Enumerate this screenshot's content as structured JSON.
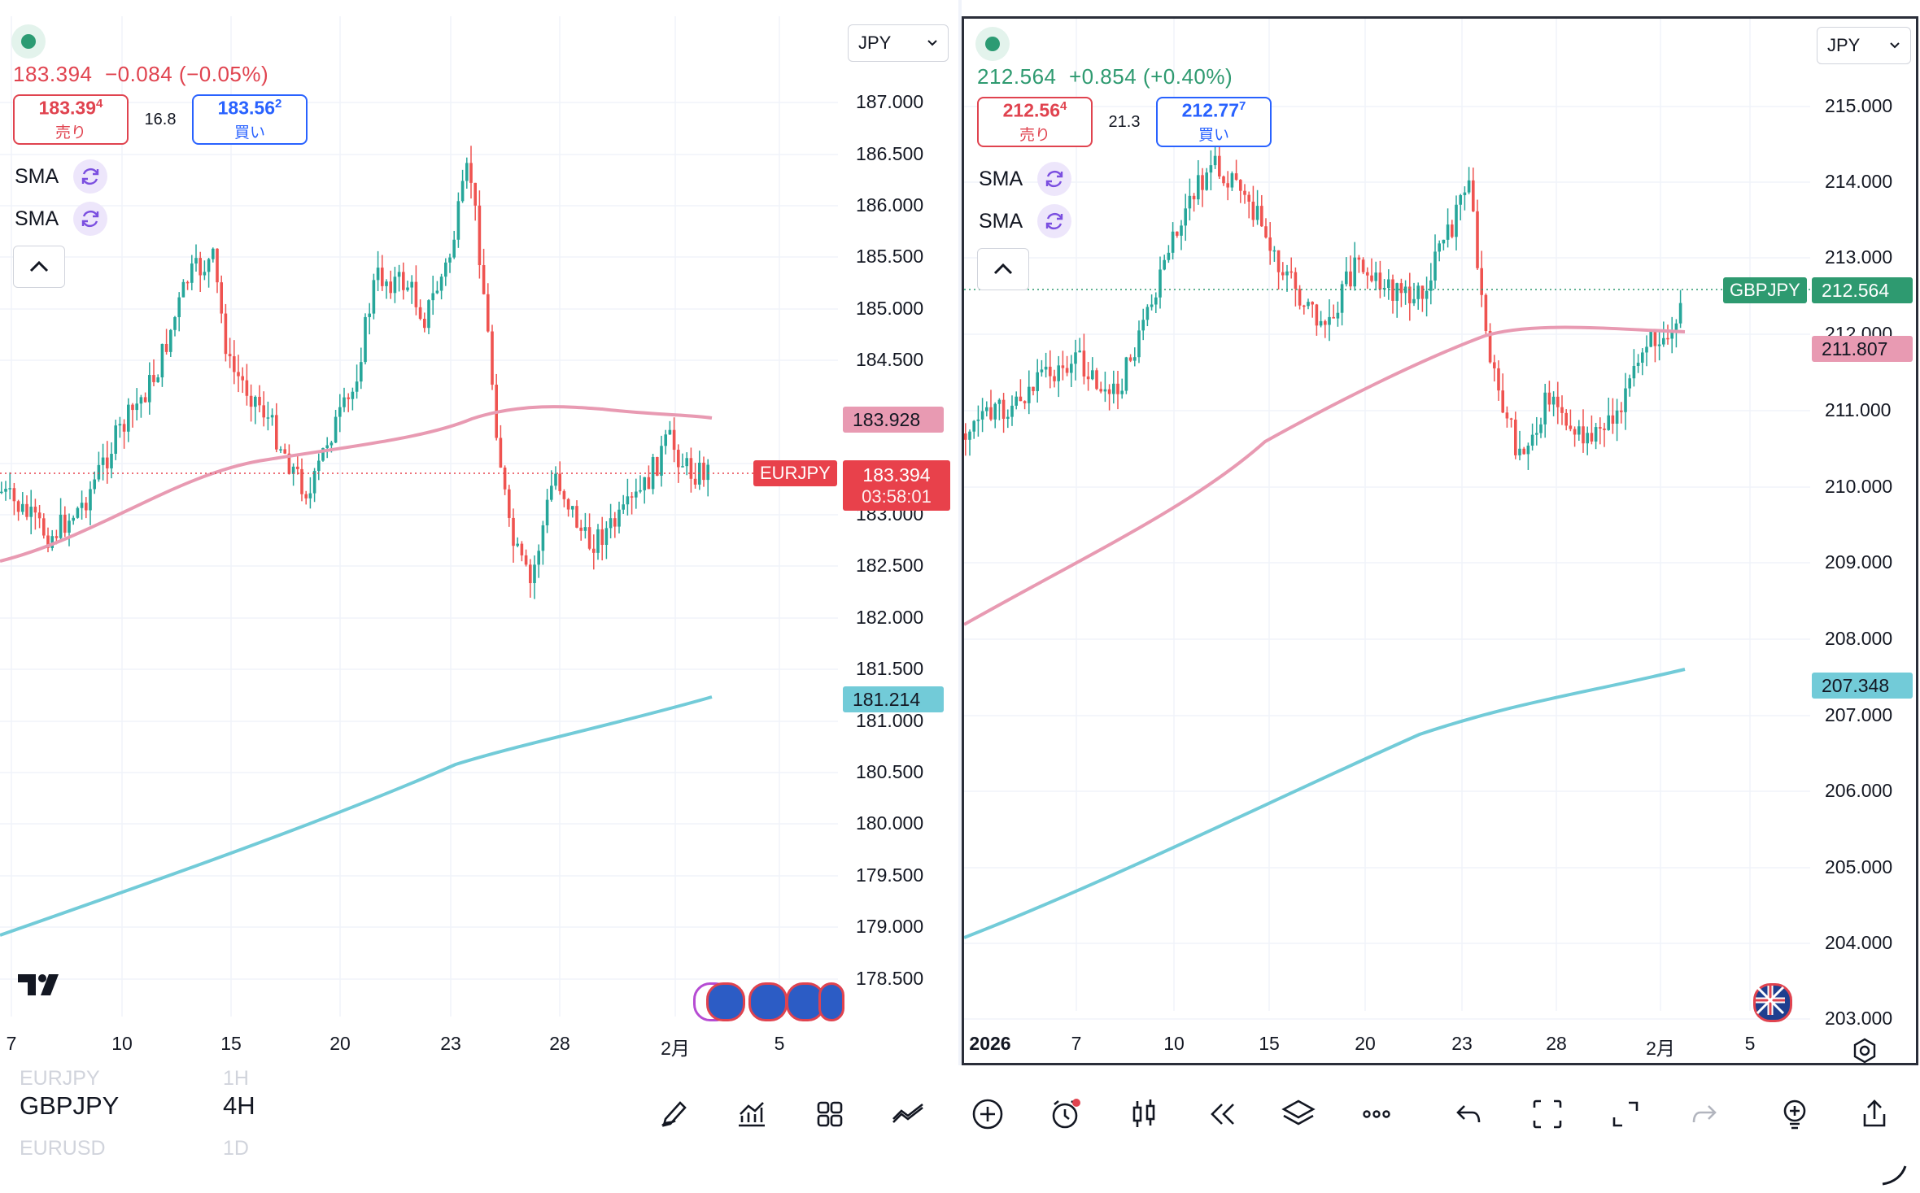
{
  "left_chart": {
    "symbol": "EURJPY",
    "currency": "JPY",
    "price_line": {
      "last": "183.394",
      "change": "−0.084",
      "change_pct": "(−0.05%)"
    },
    "sell": {
      "price_main": "183.39",
      "price_sup": "4",
      "label": "売り"
    },
    "spread": "16.8",
    "buy": {
      "price_main": "183.56",
      "price_sup": "2",
      "label": "買い"
    },
    "indicators": [
      "SMA",
      "SMA"
    ],
    "y_axis_labels": [
      "187.000",
      "186.500",
      "186.000",
      "185.500",
      "185.000",
      "184.500",
      "183.000",
      "182.500",
      "182.000",
      "181.500",
      "181.000",
      "180.500",
      "180.000",
      "179.500",
      "179.000",
      "178.500"
    ],
    "sma_pink_tag": "183.928",
    "symbol_tag": "EURJPY",
    "last_price_tag": "183.394",
    "countdown": "03:58:01",
    "sma_blue_tag": "181.214",
    "x_axis_labels": [
      "7",
      "10",
      "15",
      "20",
      "23",
      "28",
      "2月",
      "5"
    ],
    "colors": {
      "up": "#26a69a",
      "down": "#ef5350",
      "sma_fast": "#e89ab2",
      "sma_slow": "#72cbd8"
    }
  },
  "right_chart": {
    "symbol": "GBPJPY",
    "currency": "JPY",
    "price_line": {
      "last": "212.564",
      "change": "+0.854",
      "change_pct": "(+0.40%)"
    },
    "sell": {
      "price_main": "212.56",
      "price_sup": "4",
      "label": "売り"
    },
    "spread": "21.3",
    "buy": {
      "price_main": "212.77",
      "price_sup": "7",
      "label": "買い"
    },
    "indicators": [
      "SMA",
      "SMA"
    ],
    "y_axis_labels": [
      "215.000",
      "214.000",
      "213.000",
      "212.000",
      "211.000",
      "210.000",
      "209.000",
      "208.000",
      "207.000",
      "206.000",
      "205.000",
      "204.000",
      "203.000"
    ],
    "symbol_tag": "GBPJPY",
    "last_price_tag": "212.564",
    "sma_pink_tag": "211.807",
    "sma_blue_tag": "207.348",
    "x_axis_labels": [
      "2026",
      "7",
      "10",
      "15",
      "20",
      "23",
      "28",
      "2月",
      "5"
    ]
  },
  "bottom": {
    "symbols": [
      {
        "symbol": "EURJPY",
        "interval": "1H"
      },
      {
        "symbol": "GBPJPY",
        "interval": "4H"
      },
      {
        "symbol": "EURUSD",
        "interval": "1D"
      }
    ],
    "tools": [
      "draw-icon",
      "indicators-icon",
      "layout-grid-icon",
      "chart-compare-icon",
      "add-icon",
      "alert-icon",
      "candle-type-icon",
      "replay-icon",
      "layers-icon",
      "more-icon",
      "undo-icon",
      "fullscreen-select-icon",
      "expand-icon",
      "redo-icon",
      "ideas-icon",
      "share-icon"
    ]
  }
}
